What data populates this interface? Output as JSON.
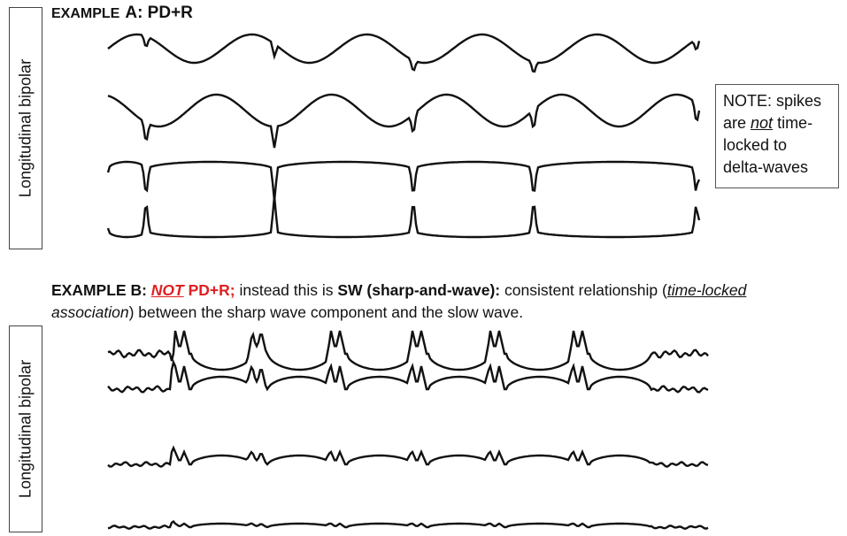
{
  "example_a": {
    "title": [
      "EXAMPLE",
      "A: PD+R"
    ],
    "side_label": "Longitudinal bipolar",
    "note": [
      "NOTE: spikes are ",
      "not",
      " time-locked to delta-waves"
    ]
  },
  "example_b": {
    "caption": [
      "EXAMPLE B: ",
      "NOT",
      " PD+R;",
      " instead this is ",
      "SW (sharp-and-wave):",
      " consistent relationship (",
      "time-locked",
      " association",
      ") between the sharp wave component and the slow wave."
    ],
    "side_label": "Longitudinal bipolar"
  }
}
